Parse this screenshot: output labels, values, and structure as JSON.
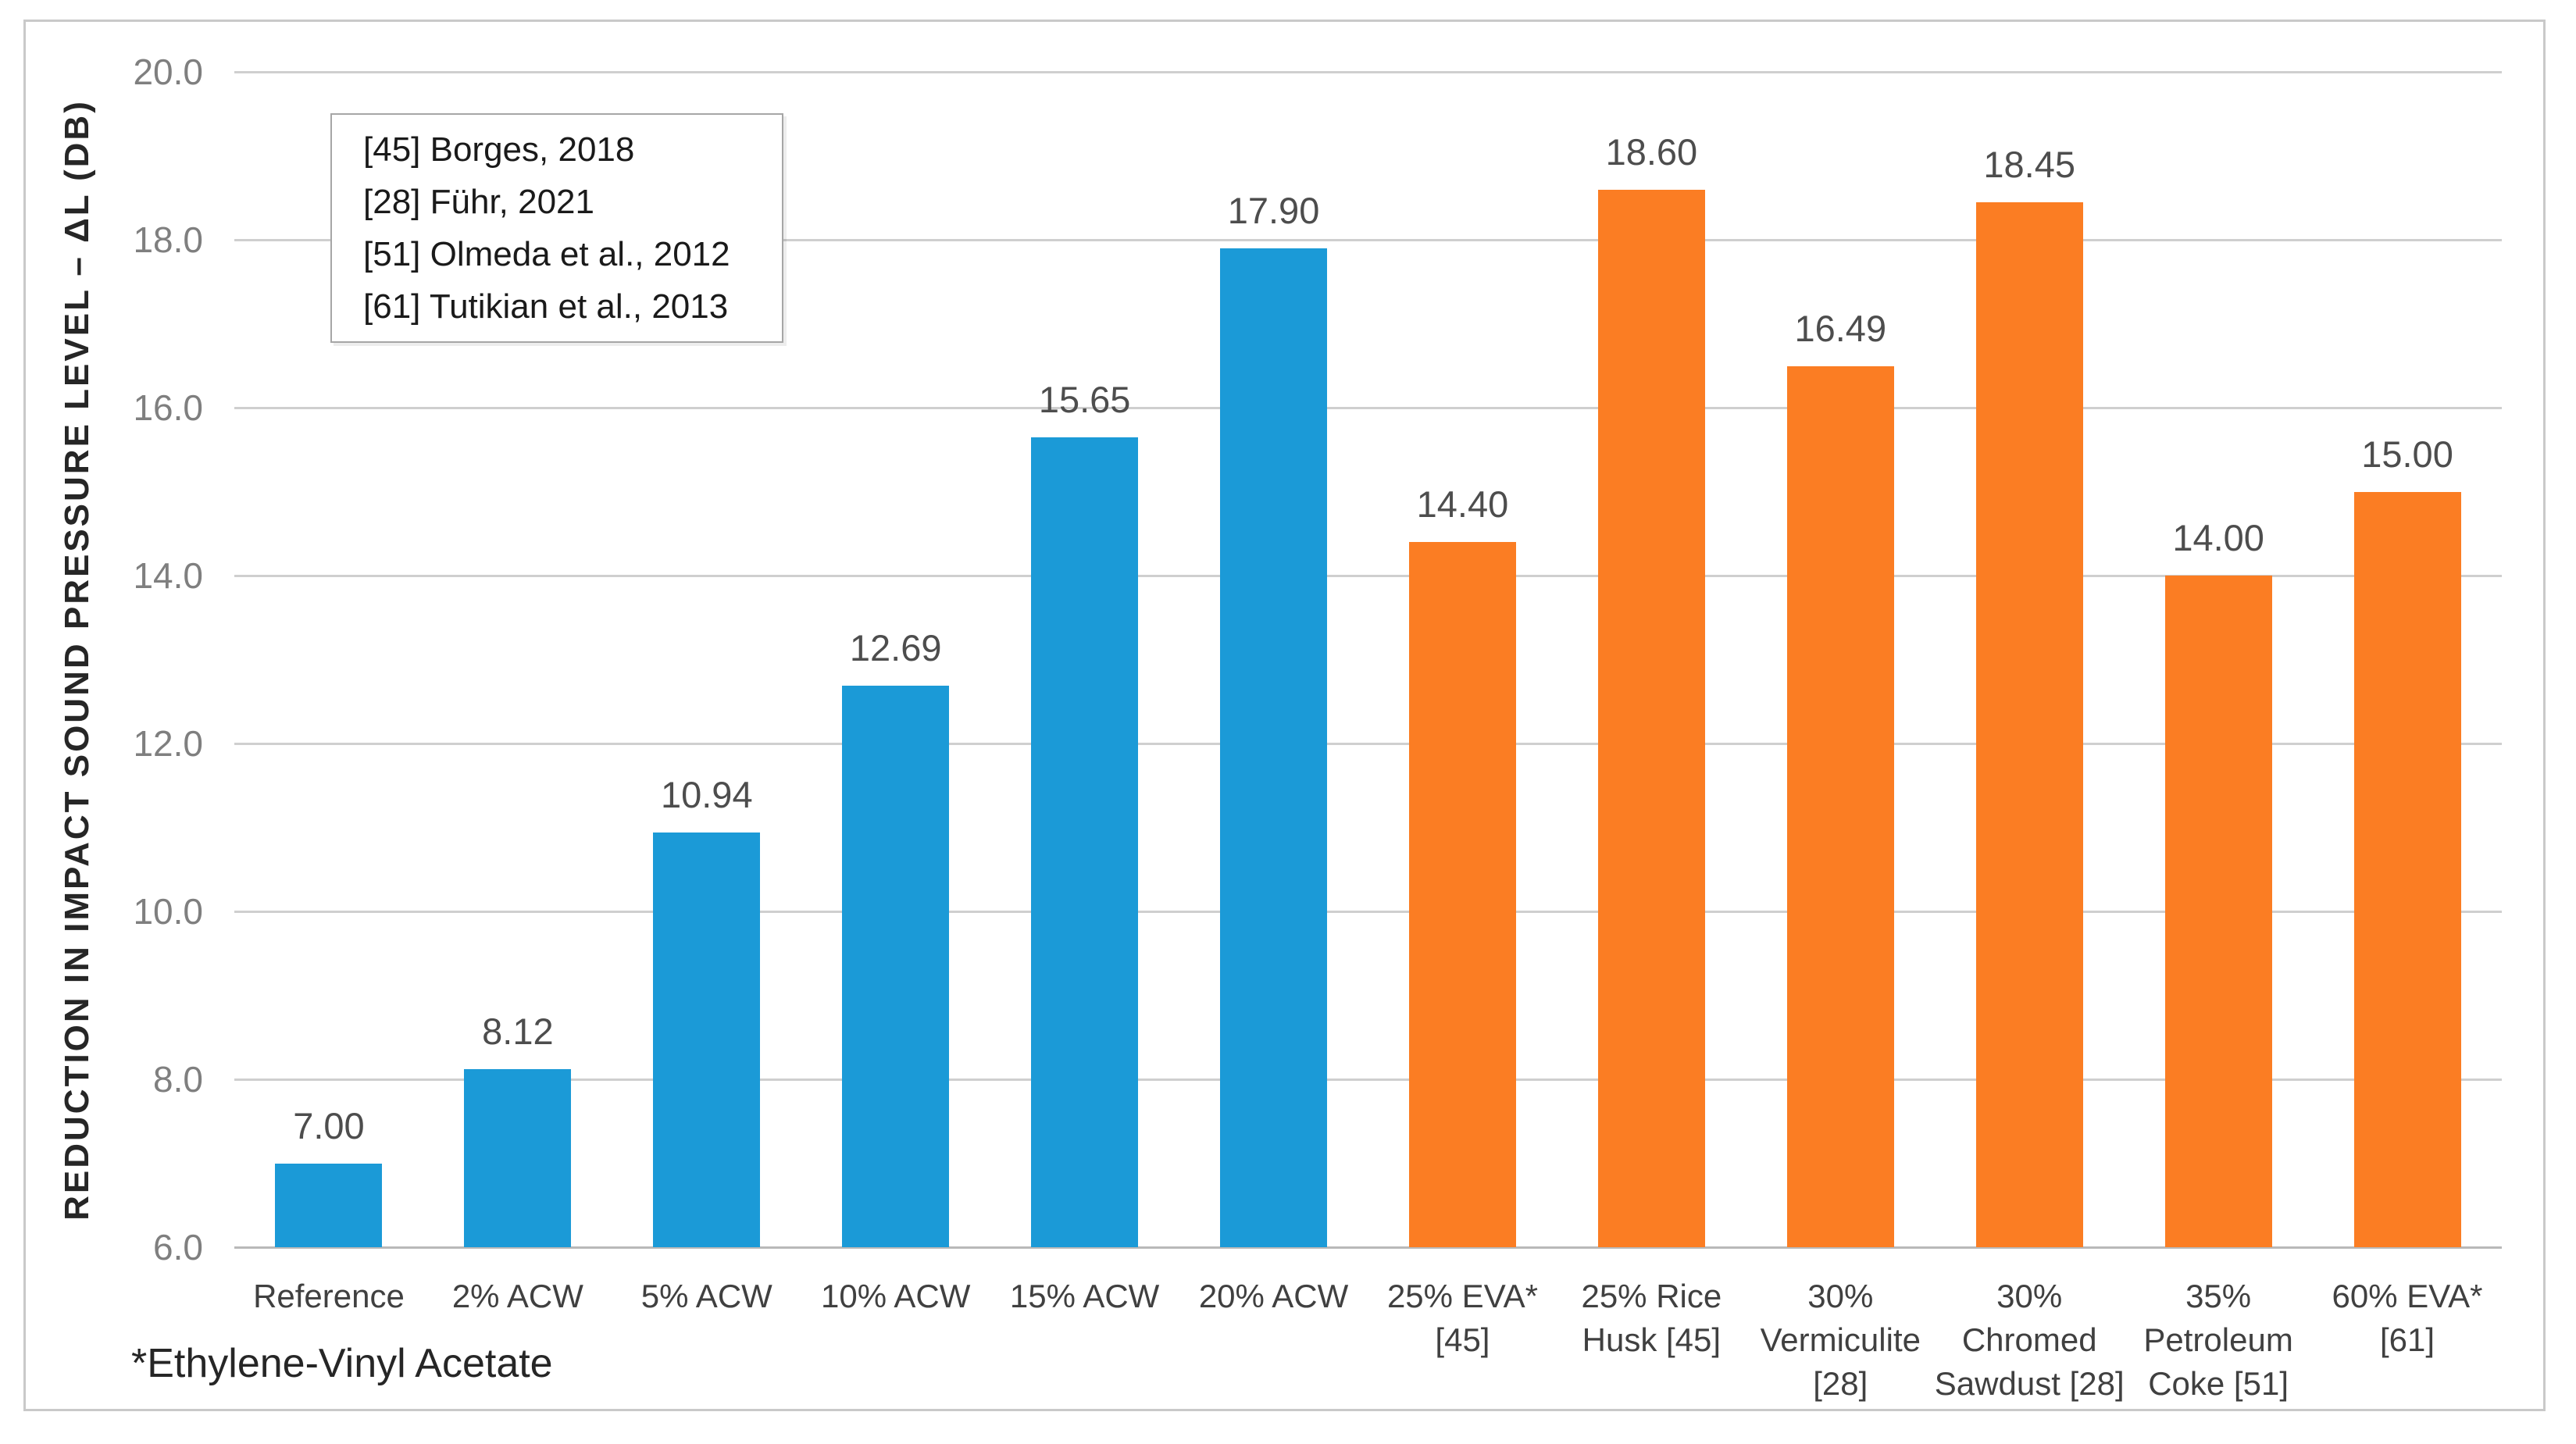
{
  "chart_data": {
    "type": "bar",
    "title": "",
    "ylabel": "REDUCTION IN IMPACT SOUND PRESSURE LEVEL – ΔL (DB)",
    "xlabel": "",
    "ylim": [
      6.0,
      20.0
    ],
    "ytick_step": 2.0,
    "yticks": [
      "6.0",
      "8.0",
      "10.0",
      "12.0",
      "14.0",
      "16.0",
      "18.0",
      "20.0"
    ],
    "grid": "horizontal",
    "categories": [
      "Reference",
      "2% ACW",
      "5% ACW",
      "10% ACW",
      "15% ACW",
      "20% ACW",
      "25% EVA* [45]",
      "25% Rice Husk [45]",
      "30% Vermiculite [28]",
      "30% Chromed Sawdust [28]",
      "35% Petroleum Coke [51]",
      "60% EVA* [61]"
    ],
    "category_lines": [
      [
        "Reference"
      ],
      [
        "2% ACW"
      ],
      [
        "5% ACW"
      ],
      [
        "10% ACW"
      ],
      [
        "15% ACW"
      ],
      [
        "20% ACW"
      ],
      [
        "25% EVA*",
        "[45]"
      ],
      [
        "25% Rice",
        "Husk [45]"
      ],
      [
        "30%",
        "Vermiculite",
        "[28]"
      ],
      [
        "30%",
        "Chromed",
        "Sawdust [28]"
      ],
      [
        "35%",
        "Petroleum",
        "Coke [51]"
      ],
      [
        "60% EVA*",
        "[61]"
      ]
    ],
    "values": [
      7.0,
      8.12,
      10.94,
      12.69,
      15.65,
      17.9,
      14.4,
      18.6,
      16.49,
      18.45,
      14.0,
      15.0
    ],
    "value_labels": [
      "7.00",
      "8.12",
      "10.94",
      "12.69",
      "15.65",
      "17.90",
      "14.40",
      "18.60",
      "16.49",
      "18.45",
      "14.00",
      "15.00"
    ],
    "bar_color_keys": [
      "blue",
      "blue",
      "blue",
      "blue",
      "blue",
      "blue",
      "orange",
      "orange",
      "orange",
      "orange",
      "orange",
      "orange"
    ],
    "colors": {
      "blue": "#1b9ad7",
      "orange": "#fb7d23",
      "gridline": "#cfcfcf",
      "tick_text": "#7f7f7f",
      "value_text": "#4d4d4d",
      "category_text": "#404040"
    },
    "legend_position": "inside-top-left",
    "legend": [
      "[45] Borges, 2018",
      "[28] Führ, 2021",
      "[51] Olmeda et al., 2012",
      "[61] Tutikian et al., 2013"
    ],
    "footnote": "*Ethylene-Vinyl Acetate"
  }
}
